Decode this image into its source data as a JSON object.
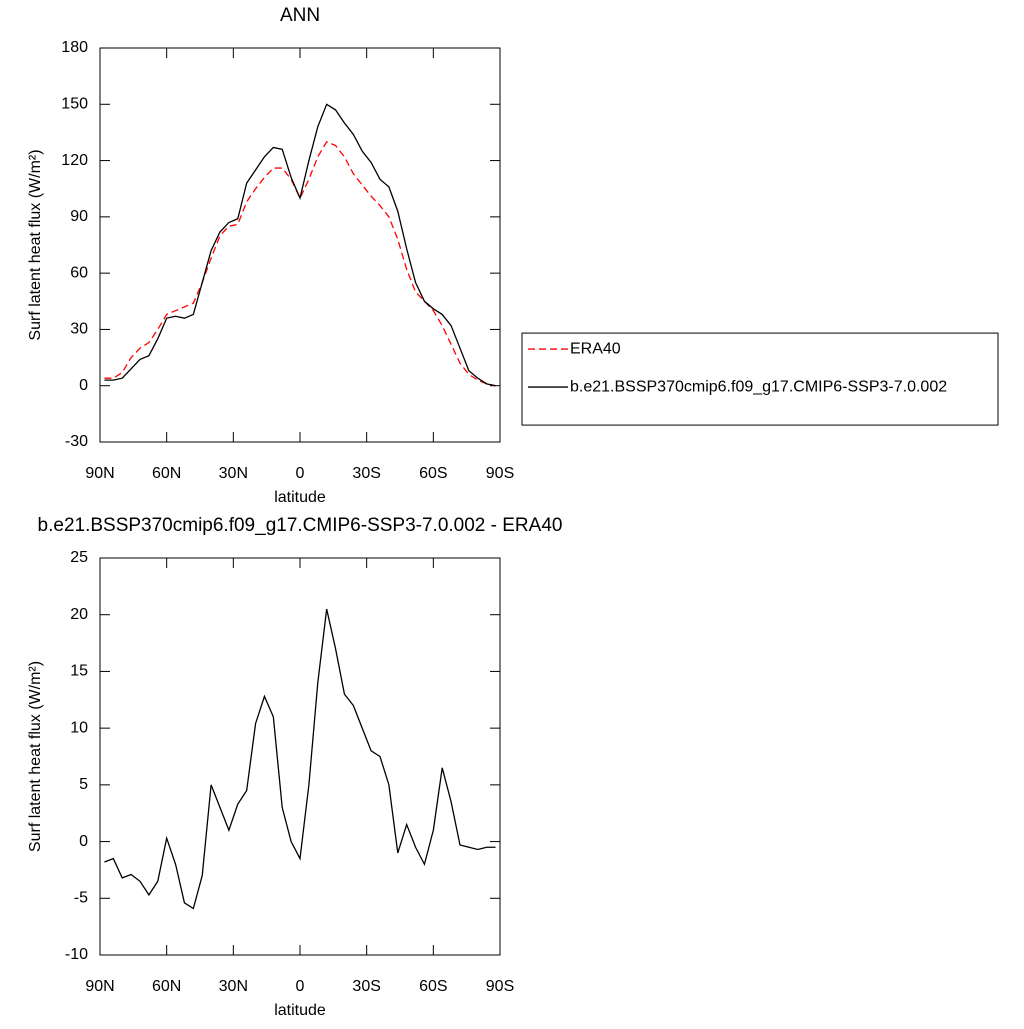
{
  "chart_data": [
    {
      "type": "line",
      "title": "ANN",
      "xlabel": "latitude",
      "ylabel": "Surf latent heat flux (W/m²)",
      "x": [
        88,
        84,
        80,
        76,
        72,
        68,
        64,
        60,
        56,
        52,
        48,
        44,
        40,
        36,
        32,
        28,
        24,
        20,
        16,
        12,
        8,
        4,
        0,
        -4,
        -8,
        -12,
        -16,
        -20,
        -24,
        -28,
        -32,
        -36,
        -40,
        -44,
        -48,
        -52,
        -56,
        -60,
        -64,
        -68,
        -72,
        -76,
        -80,
        -84,
        -88
      ],
      "series": [
        {
          "name": "ERA40",
          "color": "#ff0000",
          "dashed": true,
          "values": [
            4,
            4,
            7,
            15,
            20,
            23,
            30,
            38,
            40,
            42,
            44,
            55,
            68,
            80,
            85,
            86,
            98,
            105,
            111,
            116,
            116,
            110,
            100,
            110,
            122,
            130,
            128,
            122,
            113,
            107,
            101,
            96,
            90,
            78,
            62,
            50,
            45,
            40,
            32,
            22,
            12,
            6,
            3,
            1,
            0
          ]
        },
        {
          "name": "b.e21.BSSP370cmip6.f09_g17.CMIP6-SSP3-7.0.002",
          "color": "#000000",
          "dashed": false,
          "values": [
            3,
            3,
            4,
            9,
            14,
            16,
            25,
            36,
            37,
            36,
            38,
            55,
            72,
            82,
            87,
            89,
            108,
            115,
            122,
            127,
            126,
            111,
            100,
            120,
            138,
            150,
            147,
            140,
            134,
            125,
            119,
            110,
            106,
            93,
            73,
            55,
            45,
            41,
            38,
            32,
            20,
            8,
            4,
            1,
            0
          ]
        }
      ],
      "xlim": [
        90,
        -90
      ],
      "xticks": [
        {
          "value": 90,
          "label": "90N"
        },
        {
          "value": 60,
          "label": "60N"
        },
        {
          "value": 30,
          "label": "30N"
        },
        0,
        {
          "value": -30,
          "label": "30S"
        },
        {
          "value": -60,
          "label": "60S"
        },
        {
          "value": -90,
          "label": "90S"
        }
      ],
      "ylim": [
        -30,
        180
      ],
      "yticks": [
        -30,
        0,
        30,
        60,
        90,
        120,
        150,
        180
      ],
      "legend": "right"
    },
    {
      "type": "line",
      "title": "b.e21.BSSP370cmip6.f09_g17.CMIP6-SSP3-7.0.002 - ERA40",
      "xlabel": "latitude",
      "ylabel": "Surf latent heat flux (W/m²)",
      "x": [
        88,
        84,
        80,
        76,
        72,
        68,
        64,
        60,
        56,
        52,
        48,
        44,
        40,
        36,
        32,
        28,
        24,
        20,
        16,
        12,
        8,
        4,
        0,
        -4,
        -8,
        -12,
        -16,
        -20,
        -24,
        -28,
        -32,
        -36,
        -40,
        -44,
        -48,
        -52,
        -56,
        -60,
        -64,
        -68,
        -72,
        -76,
        -80,
        -84,
        -88
      ],
      "color": "#000000",
      "values": [
        -1.8,
        -1.5,
        -3.2,
        -2.9,
        -3.5,
        -4.7,
        -3.5,
        0.3,
        -2,
        -5.4,
        -5.9,
        -3,
        5,
        3,
        1,
        3.3,
        4.5,
        10.4,
        12.8,
        11,
        3,
        0,
        -1.5,
        5,
        14,
        20.5,
        17,
        13,
        12,
        10,
        8,
        7.5,
        5,
        -1,
        1.5,
        -0.5,
        -2,
        1,
        6.5,
        3.5,
        -0.3,
        -0.5,
        -0.7,
        -0.5,
        -0.5
      ],
      "xlim": [
        90,
        -90
      ],
      "xticks": [
        {
          "value": 90,
          "label": "90N"
        },
        {
          "value": 60,
          "label": "60N"
        },
        {
          "value": 30,
          "label": "30N"
        },
        0,
        {
          "value": -30,
          "label": "30S"
        },
        {
          "value": -60,
          "label": "60S"
        },
        {
          "value": -90,
          "label": "90S"
        }
      ],
      "ylim": [
        -10,
        25
      ],
      "yticks": [
        -10,
        -5,
        0,
        5,
        10,
        15,
        20,
        25
      ]
    }
  ]
}
